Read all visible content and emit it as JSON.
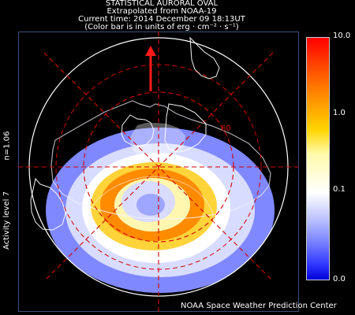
{
  "header": {
    "title": "STATISTICAL AURORAL OVAL",
    "line2": "Extrapolated from NOAA-19",
    "line3": "Current time: 2014 December 09 18:13UT",
    "line4": "(Color bar is in units of erg · cm⁻² · s⁻¹)"
  },
  "side_labels": {
    "n_value": "n=1.06",
    "activity": "Activity level 7"
  },
  "map": {
    "latitude_label": "60",
    "sun_arrow": "arrow-up-icon"
  },
  "colorbar": {
    "max_label": "10.0",
    "high_label": "1.0",
    "mid_label": "0.1",
    "min_label": "0.0"
  },
  "footer": {
    "credit": "NOAA Space Weather Prediction Center"
  },
  "colors": {
    "background": "#000000",
    "grid": "#d40000",
    "border": "#3a4f7d"
  }
}
